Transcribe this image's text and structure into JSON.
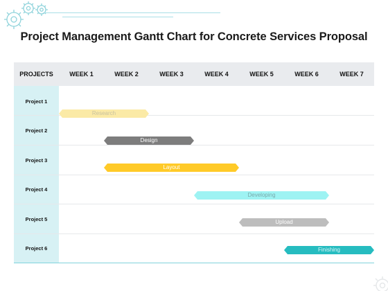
{
  "title": "Project Management Gantt Chart for Concrete Services Proposal",
  "header": {
    "projects_label": "PROJECTS",
    "weeks": [
      "WEEK 1",
      "WEEK 2",
      "WEEK 3",
      "WEEK 4",
      "WEEK 5",
      "WEEK 6",
      "WEEK 7"
    ]
  },
  "projects": [
    "Project 1",
    "Project 2",
    "Project 3",
    "Project 4",
    "Project 5",
    "Project 6"
  ],
  "tasks": [
    {
      "project": 0,
      "label": "Research",
      "start_week": 0,
      "end_week": 2,
      "color": "#fbeaa6",
      "text_color": "#c9c2a0"
    },
    {
      "project": 1,
      "label": "Design",
      "start_week": 1,
      "end_week": 3,
      "color": "#7d7d7d",
      "text_color": "#ffffff"
    },
    {
      "project": 2,
      "label": "Layout",
      "start_week": 1,
      "end_week": 4,
      "color": "#ffca28",
      "text_color": "#ffffff"
    },
    {
      "project": 3,
      "label": "Developing",
      "start_week": 3,
      "end_week": 6,
      "color": "#9ef3f3",
      "text_color": "#7aa9ab"
    },
    {
      "project": 4,
      "label": "Upload",
      "start_week": 4,
      "end_week": 6,
      "color": "#bdbdbd",
      "text_color": "#ffffff"
    },
    {
      "project": 5,
      "label": "Finishing",
      "start_week": 5,
      "end_week": 7,
      "color": "#26bcc0",
      "text_color": "#d9f5f6"
    }
  ],
  "colors": {
    "accent": "#26bcc0",
    "header_bg": "#e9ebee",
    "project_column_bg": "#d7f1f4"
  },
  "icons": [
    "gear-icon",
    "gear-icon",
    "gear-icon"
  ]
}
